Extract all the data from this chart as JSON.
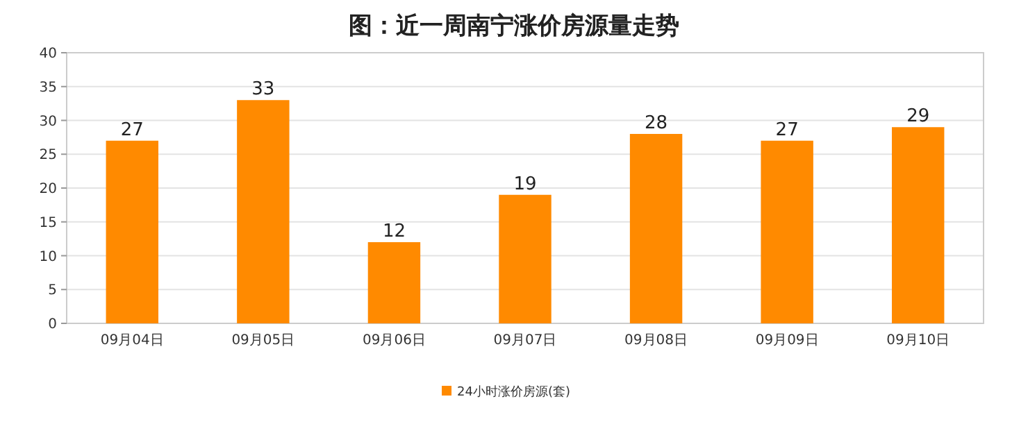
{
  "chart_data": {
    "type": "bar",
    "title": "图：近一周南宁涨价房源量走势",
    "categories": [
      "09月04日",
      "09月05日",
      "09月06日",
      "09月07日",
      "09月08日",
      "09月09日",
      "09月10日"
    ],
    "series": [
      {
        "name": "24小时涨价房源(套)",
        "color": "#ff8a00",
        "values": [
          27,
          33,
          12,
          19,
          28,
          27,
          29
        ]
      }
    ],
    "ylim": [
      0,
      40
    ],
    "yticks": [
      0,
      5,
      10,
      15,
      20,
      25,
      30,
      35,
      40
    ],
    "grid": "y",
    "legend": "bottom",
    "data_labels": true
  }
}
